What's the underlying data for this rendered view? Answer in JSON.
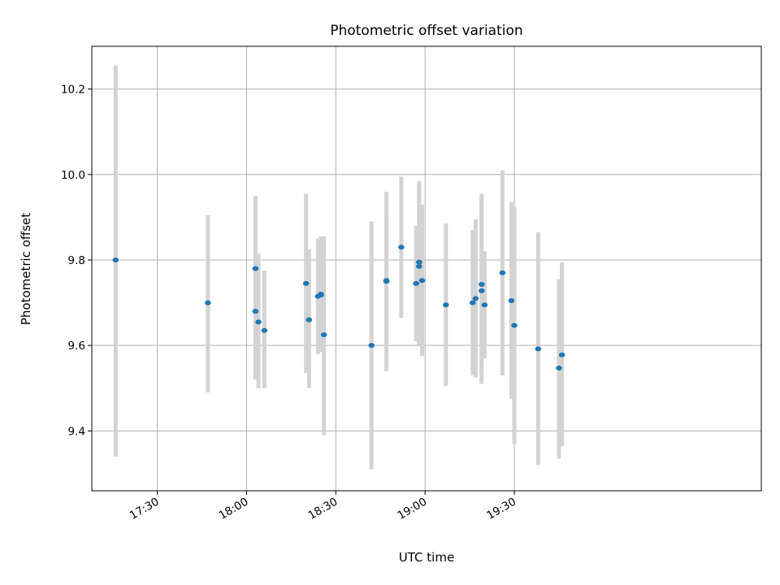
{
  "chart_data": {
    "type": "scatter",
    "title": "Photometric offset variation",
    "xlabel": "UTC time",
    "ylabel": "Photometric offset",
    "x_unit": "UTC time of day (HH:MM)",
    "xlim": [
      "17:08",
      "20:53"
    ],
    "ylim": [
      9.26,
      10.3
    ],
    "x_ticks": [
      "17:30",
      "18:00",
      "18:30",
      "19:00",
      "19:30"
    ],
    "y_ticks": [
      9.4,
      9.6,
      9.8,
      10.0,
      10.2
    ],
    "y_tick_labels": [
      "9.4",
      "9.6",
      "9.8",
      "10.0",
      "10.2"
    ],
    "grid": true,
    "colors": {
      "points": "#1f77b4",
      "error_bars": "#d3d3d3",
      "grid": "#b0b0b0"
    },
    "points": [
      {
        "x": "17:16",
        "y": 9.8,
        "err_low": 9.34,
        "err_high": 10.255
      },
      {
        "x": "17:47",
        "y": 9.7,
        "err_low": 9.49,
        "err_high": 9.905
      },
      {
        "x": "18:03",
        "y": 9.78,
        "err_low": 9.53,
        "err_high": 9.95
      },
      {
        "x": "18:03",
        "y": 9.68,
        "err_low": 9.52,
        "err_high": 9.84
      },
      {
        "x": "18:04",
        "y": 9.655,
        "err_low": 9.5,
        "err_high": 9.815
      },
      {
        "x": "18:06",
        "y": 9.635,
        "err_low": 9.5,
        "err_high": 9.775
      },
      {
        "x": "18:20",
        "y": 9.745,
        "err_low": 9.535,
        "err_high": 9.955
      },
      {
        "x": "18:21",
        "y": 9.66,
        "err_low": 9.5,
        "err_high": 9.825
      },
      {
        "x": "18:24",
        "y": 9.715,
        "err_low": 9.58,
        "err_high": 9.85
      },
      {
        "x": "18:25",
        "y": 9.718,
        "err_low": 9.585,
        "err_high": 9.855
      },
      {
        "x": "18:25",
        "y": 9.72,
        "err_low": 9.585,
        "err_high": 9.855
      },
      {
        "x": "18:26",
        "y": 9.625,
        "err_low": 9.39,
        "err_high": 9.855
      },
      {
        "x": "18:42",
        "y": 9.6,
        "err_low": 9.31,
        "err_high": 9.89
      },
      {
        "x": "18:47",
        "y": 9.75,
        "err_low": 9.59,
        "err_high": 9.91
      },
      {
        "x": "18:47",
        "y": 9.752,
        "err_low": 9.54,
        "err_high": 9.96
      },
      {
        "x": "18:52",
        "y": 9.83,
        "err_low": 9.665,
        "err_high": 9.995
      },
      {
        "x": "18:57",
        "y": 9.745,
        "err_low": 9.61,
        "err_high": 9.88
      },
      {
        "x": "18:58",
        "y": 9.785,
        "err_low": 9.6,
        "err_high": 9.97
      },
      {
        "x": "18:58",
        "y": 9.795,
        "err_low": 9.605,
        "err_high": 9.985
      },
      {
        "x": "18:59",
        "y": 9.752,
        "err_low": 9.575,
        "err_high": 9.93
      },
      {
        "x": "19:07",
        "y": 9.695,
        "err_low": 9.505,
        "err_high": 9.885
      },
      {
        "x": "19:16",
        "y": 9.7,
        "err_low": 9.53,
        "err_high": 9.87
      },
      {
        "x": "19:17",
        "y": 9.71,
        "err_low": 9.525,
        "err_high": 9.895
      },
      {
        "x": "19:19",
        "y": 9.728,
        "err_low": 9.51,
        "err_high": 9.945
      },
      {
        "x": "19:19",
        "y": 9.743,
        "err_low": 9.535,
        "err_high": 9.955
      },
      {
        "x": "19:20",
        "y": 9.695,
        "err_low": 9.57,
        "err_high": 9.82
      },
      {
        "x": "19:26",
        "y": 9.77,
        "err_low": 9.53,
        "err_high": 10.01
      },
      {
        "x": "19:29",
        "y": 9.705,
        "err_low": 9.475,
        "err_high": 9.935
      },
      {
        "x": "19:30",
        "y": 9.647,
        "err_low": 9.37,
        "err_high": 9.925
      },
      {
        "x": "19:38",
        "y": 9.592,
        "err_low": 9.32,
        "err_high": 9.865
      },
      {
        "x": "19:45",
        "y": 9.547,
        "err_low": 9.335,
        "err_high": 9.755
      },
      {
        "x": "19:46",
        "y": 9.578,
        "err_low": 9.365,
        "err_high": 9.795
      }
    ]
  }
}
